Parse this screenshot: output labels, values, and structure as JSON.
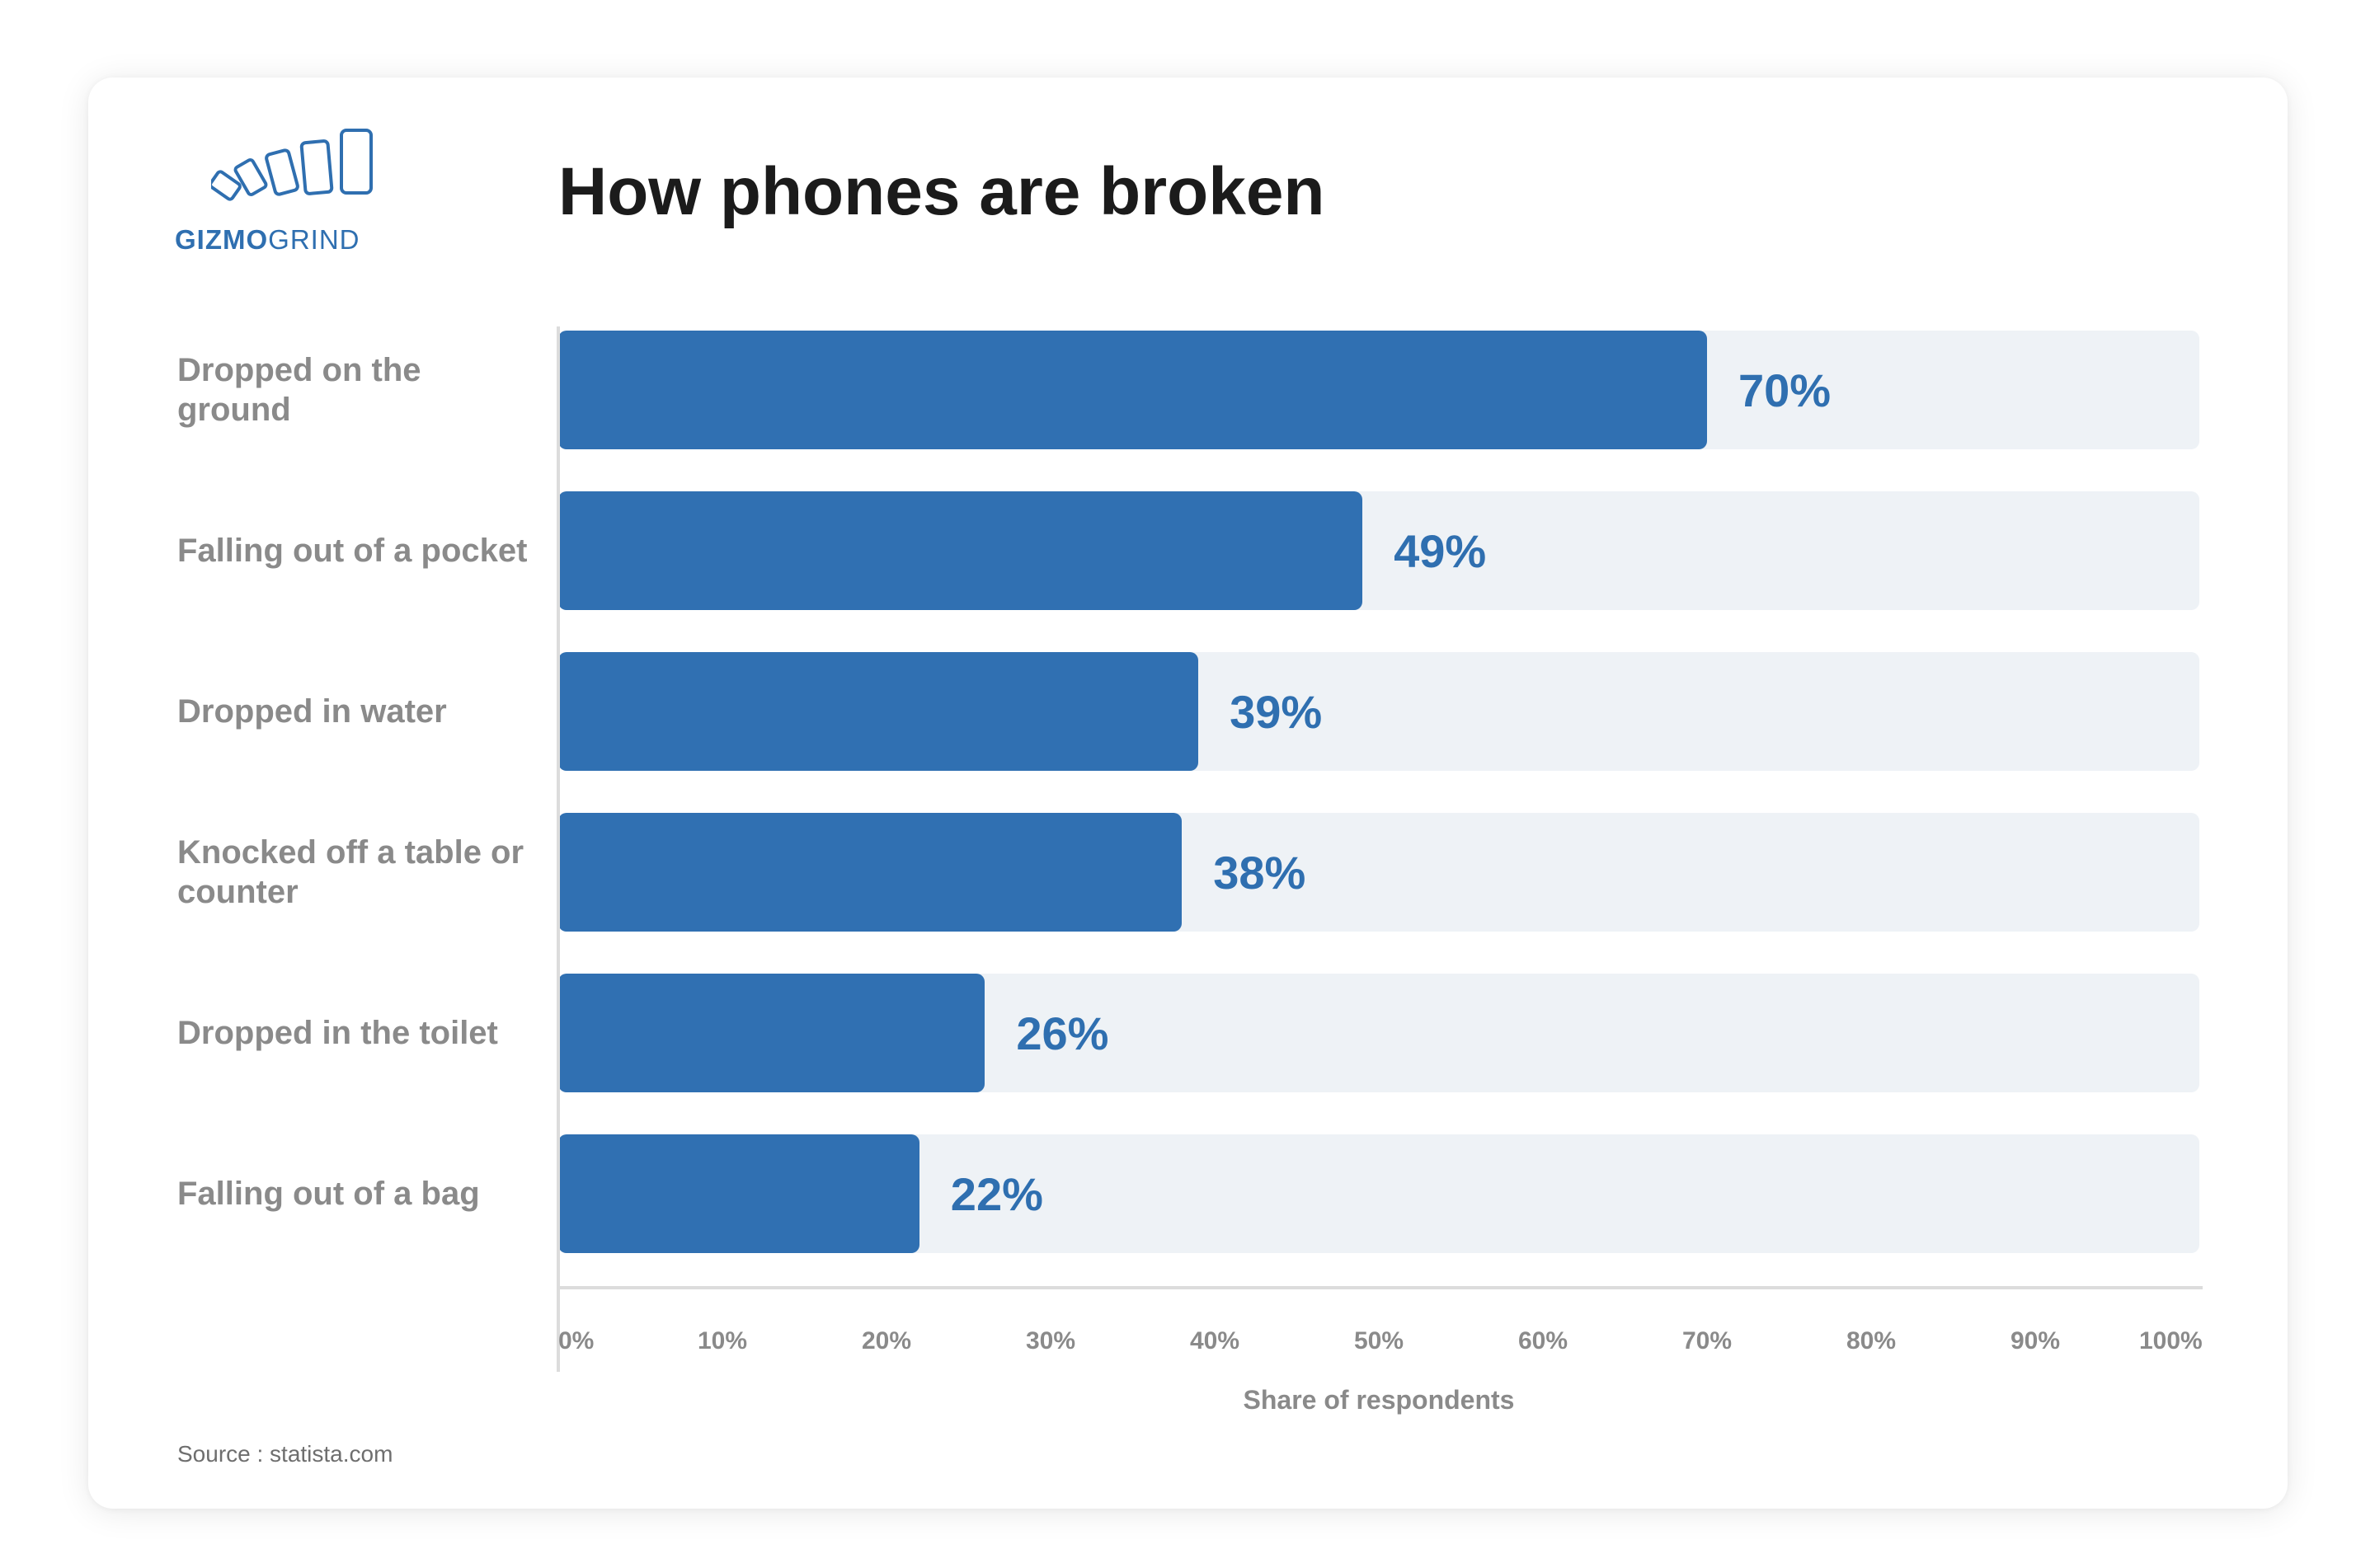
{
  "logo": {
    "brand_bold": "GIZMO",
    "brand_light": "GRIND"
  },
  "chart_data": {
    "type": "bar",
    "orientation": "horizontal",
    "title": "How phones are broken",
    "categories": [
      "Dropped on the ground",
      "Falling out of a pocket",
      "Dropped in water",
      "Knocked off a table or counter",
      "Dropped in the toilet",
      "Falling out of a bag"
    ],
    "values": [
      70,
      49,
      39,
      38,
      26,
      22
    ],
    "value_labels": [
      "70%",
      "49%",
      "39%",
      "38%",
      "26%",
      "22%"
    ],
    "xlabel": "Share of respondents",
    "ylabel": "",
    "xlim": [
      0,
      100
    ],
    "x_ticks": [
      "0%",
      "10%",
      "20%",
      "30%",
      "40%",
      "50%",
      "60%",
      "70%",
      "80%",
      "90%",
      "100%"
    ],
    "grid": false,
    "legend": "none",
    "colors": {
      "bar": "#3070b2",
      "track": "#eef2f6",
      "value_label": "#2f6fb0"
    }
  },
  "source": "Source : statista.com"
}
